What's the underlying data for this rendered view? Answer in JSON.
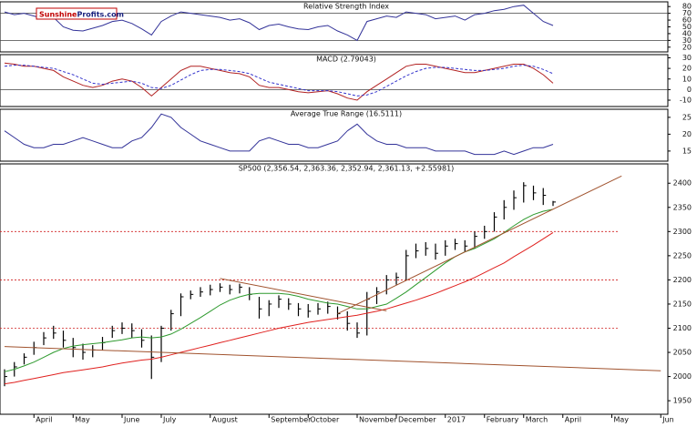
{
  "brand": {
    "part1": "Sunshine",
    "part2": "Profits.com"
  },
  "chart_data": [
    {
      "type": "line",
      "title": "Relative Strength Index",
      "ylim": [
        13,
        87
      ],
      "yticks": [
        80,
        70,
        60,
        50,
        40,
        30,
        20
      ],
      "reference_lines": [
        70,
        30
      ],
      "series": [
        {
          "color": "#333399",
          "values": [
            72,
            68,
            70,
            66,
            62,
            64,
            50,
            45,
            44,
            48,
            52,
            58,
            60,
            55,
            47,
            38,
            58,
            66,
            72,
            70,
            68,
            66,
            64,
            60,
            62,
            56,
            46,
            52,
            54,
            50,
            47,
            46,
            50,
            52,
            44,
            38,
            30,
            58,
            62,
            66,
            64,
            72,
            70,
            68,
            62,
            64,
            66,
            60,
            68,
            70,
            74,
            76,
            80,
            82,
            70,
            58,
            52,
            null,
            null,
            null,
            null,
            null,
            null,
            null,
            null,
            null,
            null,
            null
          ]
        }
      ]
    },
    {
      "type": "line",
      "title": "MACD (2.79043)",
      "ylim": [
        -16,
        33
      ],
      "yticks": [
        30,
        20,
        10,
        0,
        -10
      ],
      "reference_lines": [
        0
      ],
      "series": [
        {
          "color": "#b22222",
          "values": [
            25,
            24,
            22,
            22,
            20,
            18,
            12,
            8,
            4,
            2,
            4,
            8,
            10,
            8,
            2,
            -6,
            2,
            10,
            18,
            22,
            22,
            20,
            18,
            16,
            15,
            12,
            4,
            2,
            2,
            0,
            -2,
            -3,
            -2,
            -1,
            -4,
            -8,
            -10,
            -2,
            4,
            10,
            16,
            22,
            24,
            24,
            22,
            20,
            18,
            16,
            16,
            18,
            20,
            22,
            24,
            24,
            20,
            14,
            6,
            null,
            null,
            null,
            null,
            null,
            null,
            null,
            null,
            null,
            null,
            null
          ]
        },
        {
          "color": "#3333cc",
          "dashed": true,
          "values": [
            22,
            23,
            23,
            22,
            21,
            20,
            17,
            14,
            10,
            6,
            5,
            6,
            7,
            8,
            6,
            2,
            1,
            4,
            9,
            14,
            18,
            19,
            19,
            18,
            17,
            15,
            11,
            7,
            5,
            3,
            1,
            -1,
            -1,
            -1,
            -2,
            -4,
            -6,
            -5,
            -2,
            3,
            8,
            13,
            17,
            20,
            21,
            21,
            20,
            19,
            18,
            18,
            19,
            20,
            22,
            23,
            22,
            19,
            15,
            null,
            null,
            null,
            null,
            null,
            null,
            null,
            null,
            null,
            null,
            null
          ]
        }
      ]
    },
    {
      "type": "line",
      "title": "Average True Range (16.5111)",
      "ylim": [
        12,
        27.4
      ],
      "yticks": [
        25,
        20,
        15
      ],
      "series": [
        {
          "color": "#333399",
          "values": [
            21,
            19,
            17,
            16,
            16,
            17,
            17,
            18,
            19,
            18,
            17,
            16,
            16,
            18,
            19,
            22,
            26,
            25,
            22,
            20,
            18,
            17,
            16,
            15,
            15,
            15,
            18,
            19,
            18,
            17,
            17,
            16,
            16,
            17,
            18,
            21,
            23,
            20,
            18,
            17,
            17,
            16,
            16,
            16,
            15,
            15,
            15,
            15,
            14,
            14,
            14,
            15,
            14,
            15,
            16,
            16,
            17,
            null,
            null,
            null,
            null,
            null,
            null,
            null,
            null,
            null,
            null,
            null
          ]
        }
      ]
    },
    {
      "type": "ohlc",
      "title": "SP500 (2,356.54, 2,363.36, 2,352.94, 2,361.13, +2.55981)",
      "color": "#000000",
      "ylim": [
        1922,
        2440
      ],
      "yticks": [
        1950,
        2000,
        2050,
        2100,
        2150,
        2200,
        2250,
        2300,
        2350,
        2400
      ],
      "categories": [
        null,
        null,
        null,
        "April",
        null,
        null,
        null,
        "May",
        null,
        null,
        null,
        null,
        "June",
        null,
        null,
        null,
        "July",
        null,
        null,
        null,
        null,
        "August",
        null,
        null,
        null,
        null,
        null,
        "September",
        null,
        null,
        null,
        "October",
        null,
        null,
        null,
        null,
        "November",
        null,
        null,
        null,
        "December",
        null,
        null,
        null,
        null,
        "2017",
        null,
        null,
        null,
        "February",
        null,
        null,
        null,
        "March",
        null,
        null,
        null,
        "April",
        null,
        null,
        null,
        null,
        "May",
        null,
        null,
        null,
        null,
        "Jun"
      ],
      "high": [
        2015,
        2030,
        2048,
        2072,
        2092,
        2105,
        2095,
        2080,
        2068,
        2065,
        2082,
        2105,
        2112,
        2110,
        2098,
        2085,
        2105,
        2138,
        2172,
        2178,
        2185,
        2190,
        2193,
        2190,
        2192,
        2185,
        2165,
        2158,
        2168,
        2162,
        2152,
        2150,
        2152,
        2155,
        2145,
        2135,
        2112,
        2175,
        2185,
        2210,
        2215,
        2262,
        2275,
        2278,
        2275,
        2282,
        2285,
        2282,
        2300,
        2312,
        2340,
        2365,
        2385,
        2402,
        2395,
        2390,
        2363.36,
        null,
        null,
        null,
        null,
        null,
        null,
        null,
        null,
        null,
        null,
        null
      ],
      "low": [
        1980,
        2000,
        2025,
        2045,
        2065,
        2078,
        2060,
        2040,
        2035,
        2040,
        2055,
        2080,
        2088,
        2080,
        2060,
        1995,
        2030,
        2095,
        2125,
        2160,
        2165,
        2168,
        2175,
        2170,
        2172,
        2158,
        2120,
        2125,
        2142,
        2138,
        2125,
        2122,
        2128,
        2130,
        2118,
        2095,
        2080,
        2085,
        2150,
        2170,
        2190,
        2200,
        2245,
        2250,
        2242,
        2250,
        2262,
        2258,
        2265,
        2285,
        2300,
        2325,
        2345,
        2360,
        2365,
        2355,
        2352.94,
        null,
        null,
        null,
        null,
        null,
        null,
        null,
        null,
        null,
        null,
        null
      ],
      "close": [
        2000,
        2020,
        2040,
        2060,
        2080,
        2090,
        2075,
        2060,
        2050,
        2055,
        2070,
        2095,
        2100,
        2095,
        2075,
        2040,
        2100,
        2130,
        2165,
        2170,
        2175,
        2180,
        2185,
        2180,
        2185,
        2170,
        2140,
        2150,
        2160,
        2150,
        2140,
        2135,
        2140,
        2145,
        2130,
        2110,
        2090,
        2160,
        2175,
        2200,
        2205,
        2250,
        2260,
        2265,
        2255,
        2270,
        2275,
        2270,
        2290,
        2300,
        2330,
        2350,
        2370,
        2395,
        2380,
        2375,
        2361.13,
        null,
        null,
        null,
        null,
        null,
        null,
        null,
        null,
        null,
        null,
        null
      ],
      "series": [
        {
          "color": "#2e9a2e",
          "values": [
            2010,
            2015,
            2022,
            2030,
            2040,
            2050,
            2058,
            2063,
            2066,
            2068,
            2070,
            2073,
            2076,
            2080,
            2082,
            2080,
            2082,
            2088,
            2098,
            2110,
            2122,
            2135,
            2148,
            2158,
            2165,
            2170,
            2172,
            2172,
            2172,
            2170,
            2166,
            2160,
            2156,
            2152,
            2150,
            2145,
            2140,
            2140,
            2145,
            2150,
            2162,
            2175,
            2190,
            2205,
            2220,
            2235,
            2248,
            2258,
            2265,
            2275,
            2285,
            2298,
            2312,
            2325,
            2335,
            2342,
            2346,
            null,
            null,
            null,
            null,
            null,
            null,
            null,
            null,
            null,
            null,
            null
          ]
        },
        {
          "color": "#e0201e",
          "values": [
            1985,
            1988,
            1992,
            1996,
            2000,
            2004,
            2008,
            2011,
            2014,
            2017,
            2020,
            2024,
            2028,
            2031,
            2034,
            2036,
            2040,
            2045,
            2050,
            2055,
            2060,
            2065,
            2070,
            2075,
            2080,
            2085,
            2090,
            2095,
            2100,
            2104,
            2108,
            2112,
            2115,
            2118,
            2121,
            2124,
            2127,
            2131,
            2135,
            2140,
            2146,
            2152,
            2158,
            2165,
            2172,
            2180,
            2188,
            2196,
            2205,
            2215,
            2225,
            2235,
            2248,
            2260,
            2272,
            2285,
            2298,
            null,
            null,
            null,
            null,
            null,
            null,
            null,
            null,
            null,
            null,
            null
          ]
        }
      ],
      "reference_lines": [
        2300,
        2200,
        2100
      ],
      "reference_color": "#d02020",
      "trendlines": [
        {
          "color": "#a0522d",
          "from": [
            0,
            2062
          ],
          "to": [
            67,
            2012
          ]
        },
        {
          "color": "#a0522d",
          "from": [
            34,
            2130
          ],
          "to": [
            63,
            2415
          ]
        },
        {
          "color": "#a0522d",
          "from": [
            22,
            2203
          ],
          "to": [
            39,
            2136
          ]
        }
      ]
    }
  ]
}
